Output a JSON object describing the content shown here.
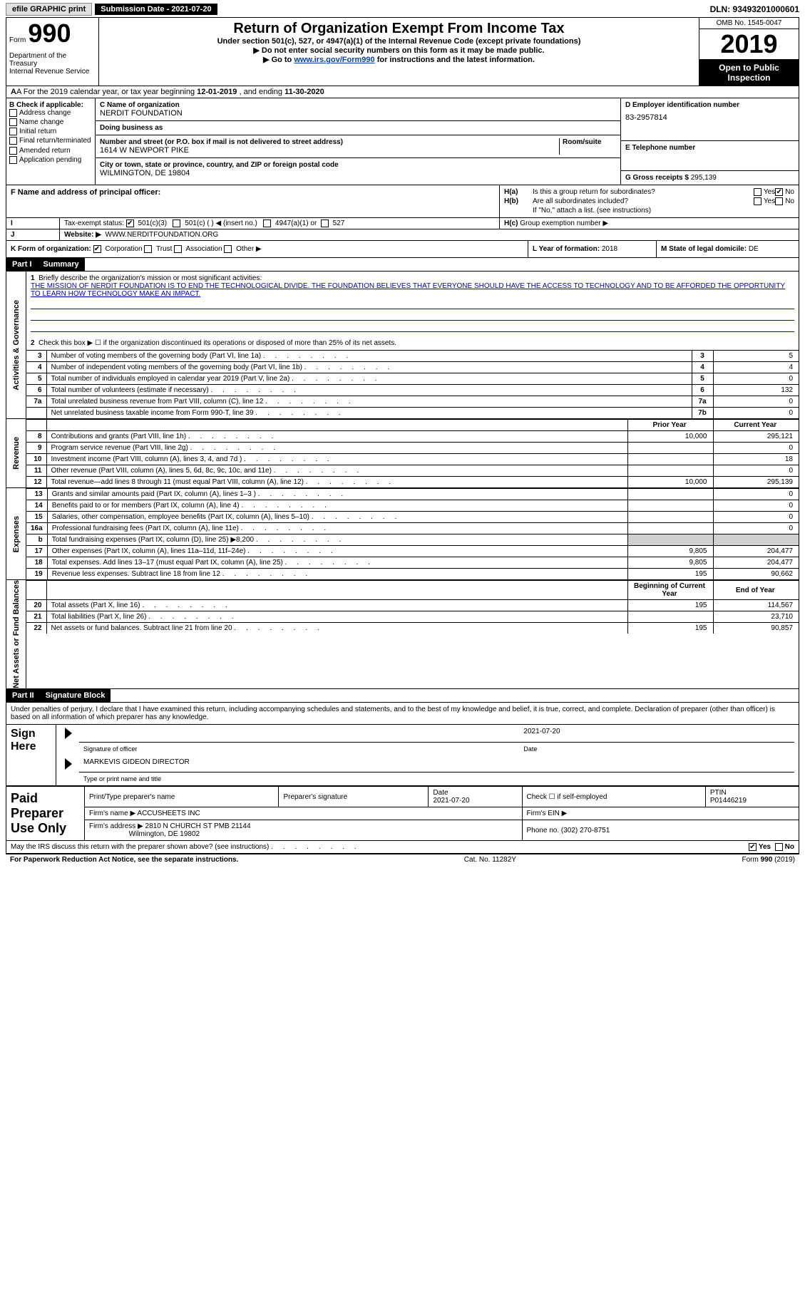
{
  "top": {
    "efile": "efile GRAPHIC print",
    "submission_label": "Submission Date - 2021-07-20",
    "dln": "DLN: 93493201000601"
  },
  "header": {
    "form_label": "Form",
    "form_num": "990",
    "dept": "Department of the Treasury\nInternal Revenue Service",
    "title": "Return of Organization Exempt From Income Tax",
    "subtitle": "Under section 501(c), 527, or 4947(a)(1) of the Internal Revenue Code (except private foundations)",
    "note1": "▶ Do not enter social security numbers on this form as it may be made public.",
    "note2_pre": "▶ Go to ",
    "note2_link": "www.irs.gov/Form990",
    "note2_post": " for instructions and the latest information.",
    "omb": "OMB No. 1545-0047",
    "year": "2019",
    "open": "Open to Public Inspection"
  },
  "rowA": {
    "pre": "A For the 2019 calendar year, or tax year beginning ",
    "begin": "12-01-2019",
    "mid": " , and ending ",
    "end": "11-30-2020"
  },
  "B": {
    "title": "B Check if applicable:",
    "opts": [
      "Address change",
      "Name change",
      "Initial return",
      "Final return/terminated",
      "Amended return",
      "Application pending"
    ]
  },
  "C": {
    "name_lbl": "C Name of organization",
    "name": "NERDIT FOUNDATION",
    "dba_lbl": "Doing business as",
    "dba": "",
    "addr_lbl": "Number and street (or P.O. box if mail is not delivered to street address)",
    "room_lbl": "Room/suite",
    "addr": "1614 W NEWPORT PIKE",
    "city_lbl": "City or town, state or province, country, and ZIP or foreign postal code",
    "city": "WILMINGTON, DE  19804"
  },
  "D": {
    "lbl": "D Employer identification number",
    "val": "83-2957814"
  },
  "E": {
    "lbl": "E Telephone number",
    "val": ""
  },
  "G": {
    "lbl": "G Gross receipts $",
    "val": "295,139"
  },
  "F": {
    "lbl": "F Name and address of principal officer:",
    "val": ""
  },
  "H": {
    "a": "Is this a group return for subordinates?",
    "b": "Are all subordinates included?",
    "b_note": "If \"No,\" attach a list. (see instructions)",
    "c": "Group exemption number ▶",
    "yes": "Yes",
    "no": "No"
  },
  "I": {
    "lbl": "Tax-exempt status:",
    "opts": [
      "501(c)(3)",
      "501(c) (  ) ◀ (insert no.)",
      "4947(a)(1) or",
      "527"
    ]
  },
  "J": {
    "lbl": "Website: ▶",
    "val": "WWW.NERDITFOUNDATION.ORG"
  },
  "K": {
    "lbl": "K Form of organization:",
    "opts": [
      "Corporation",
      "Trust",
      "Association",
      "Other ▶"
    ]
  },
  "L": {
    "lbl": "L Year of formation:",
    "val": "2018"
  },
  "M": {
    "lbl": "M State of legal domicile:",
    "val": "DE"
  },
  "part1": {
    "hdr_num": "Part I",
    "hdr_txt": "Summary",
    "vert1": "Activities & Governance",
    "vert2": "Revenue",
    "vert3": "Expenses",
    "vert4": "Net Assets or Fund Balances",
    "q1_lbl": "Briefly describe the organization's mission or most significant activities:",
    "q1_val": "THE MISSION OF NERDIT FOUNDATION IS TO END THE TECHNOLOGICAL DIVIDE. THE FOUNDATION BELIEVES THAT EVERYONE SHOULD HAVE THE ACCESS TO TECHNOLOGY AND TO BE AFFORDED THE OPPORTUNITY TO LEARN HOW TECHNOLOGY MAKE AN IMPACT.",
    "q2": "Check this box ▶ ☐  if the organization discontinued its operations or disposed of more than 25% of its net assets.",
    "rows_gov": [
      {
        "n": "3",
        "d": "Number of voting members of the governing body (Part VI, line 1a)",
        "r": "3",
        "v": "5"
      },
      {
        "n": "4",
        "d": "Number of independent voting members of the governing body (Part VI, line 1b)",
        "r": "4",
        "v": "4"
      },
      {
        "n": "5",
        "d": "Total number of individuals employed in calendar year 2019 (Part V, line 2a)",
        "r": "5",
        "v": "0"
      },
      {
        "n": "6",
        "d": "Total number of volunteers (estimate if necessary)",
        "r": "6",
        "v": "132"
      },
      {
        "n": "7a",
        "d": "Total unrelated business revenue from Part VIII, column (C), line 12",
        "r": "7a",
        "v": "0"
      },
      {
        "n": "",
        "d": "Net unrelated business taxable income from Form 990-T, line 39",
        "r": "7b",
        "v": "0"
      }
    ],
    "col_prior": "Prior Year",
    "col_current": "Current Year",
    "rows_rev": [
      {
        "n": "8",
        "d": "Contributions and grants (Part VIII, line 1h)",
        "p": "10,000",
        "c": "295,121"
      },
      {
        "n": "9",
        "d": "Program service revenue (Part VIII, line 2g)",
        "p": "",
        "c": "0"
      },
      {
        "n": "10",
        "d": "Investment income (Part VIII, column (A), lines 3, 4, and 7d )",
        "p": "",
        "c": "18"
      },
      {
        "n": "11",
        "d": "Other revenue (Part VIII, column (A), lines 5, 6d, 8c, 9c, 10c, and 11e)",
        "p": "",
        "c": "0"
      },
      {
        "n": "12",
        "d": "Total revenue—add lines 8 through 11 (must equal Part VIII, column (A), line 12)",
        "p": "10,000",
        "c": "295,139"
      }
    ],
    "rows_exp": [
      {
        "n": "13",
        "d": "Grants and similar amounts paid (Part IX, column (A), lines 1–3 )",
        "p": "",
        "c": "0"
      },
      {
        "n": "14",
        "d": "Benefits paid to or for members (Part IX, column (A), line 4)",
        "p": "",
        "c": "0"
      },
      {
        "n": "15",
        "d": "Salaries, other compensation, employee benefits (Part IX, column (A), lines 5–10)",
        "p": "",
        "c": "0"
      },
      {
        "n": "16a",
        "d": "Professional fundraising fees (Part IX, column (A), line 11e)",
        "p": "",
        "c": "0"
      },
      {
        "n": "b",
        "d": "Total fundraising expenses (Part IX, column (D), line 25) ▶8,200",
        "p": "GRAY",
        "c": "GRAY"
      },
      {
        "n": "17",
        "d": "Other expenses (Part IX, column (A), lines 11a–11d, 11f–24e)",
        "p": "9,805",
        "c": "204,477"
      },
      {
        "n": "18",
        "d": "Total expenses. Add lines 13–17 (must equal Part IX, column (A), line 25)",
        "p": "9,805",
        "c": "204,477"
      },
      {
        "n": "19",
        "d": "Revenue less expenses. Subtract line 18 from line 12",
        "p": "195",
        "c": "90,662"
      }
    ],
    "col_begin": "Beginning of Current Year",
    "col_end": "End of Year",
    "rows_net": [
      {
        "n": "20",
        "d": "Total assets (Part X, line 16)",
        "p": "195",
        "c": "114,567"
      },
      {
        "n": "21",
        "d": "Total liabilities (Part X, line 26)",
        "p": "",
        "c": "23,710"
      },
      {
        "n": "22",
        "d": "Net assets or fund balances. Subtract line 21 from line 20",
        "p": "195",
        "c": "90,857"
      }
    ]
  },
  "part2": {
    "hdr_num": "Part II",
    "hdr_txt": "Signature Block",
    "decl": "Under penalties of perjury, I declare that I have examined this return, including accompanying schedules and statements, and to the best of my knowledge and belief, it is true, correct, and complete. Declaration of preparer (other than officer) is based on all information of which preparer has any knowledge."
  },
  "sign": {
    "lbl": "Sign Here",
    "sig_lbl": "Signature of officer",
    "date_lbl": "Date",
    "date": "2021-07-20",
    "name": "MARKEVIS GIDEON DIRECTOR",
    "name_lbl": "Type or print name and title"
  },
  "prep": {
    "lbl": "Paid Preparer Use Only",
    "h1": "Print/Type preparer's name",
    "h2": "Preparer's signature",
    "h3": "Date",
    "date": "2021-07-20",
    "h4": "Check ☐ if self-employed",
    "h5": "PTIN",
    "ptin": "P01446219",
    "firm_name_lbl": "Firm's name ▶",
    "firm_name": "ACCUSHEETS INC",
    "ein_lbl": "Firm's EIN ▶",
    "addr_lbl": "Firm's address ▶",
    "addr1": "2810 N CHURCH ST PMB 21144",
    "addr2": "Wilmington, DE  19802",
    "phone_lbl": "Phone no.",
    "phone": "(302) 270-8751"
  },
  "discuss": {
    "txt": "May the IRS discuss this return with the preparer shown above? (see instructions)",
    "yes": "Yes",
    "no": "No"
  },
  "footer": {
    "left": "For Paperwork Reduction Act Notice, see the separate instructions.",
    "mid": "Cat. No. 11282Y",
    "right": "Form 990 (2019)"
  }
}
